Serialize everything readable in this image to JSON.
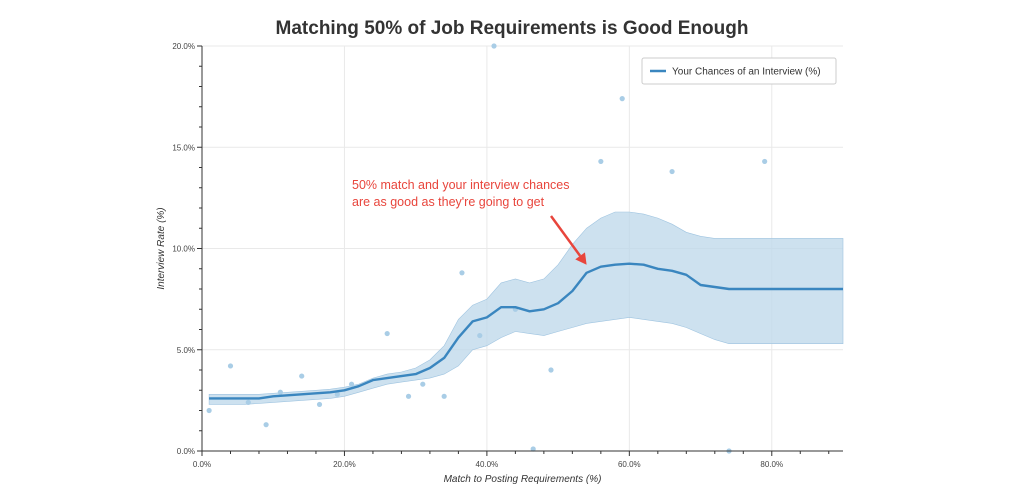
{
  "chart_data": {
    "type": "line",
    "title": "Matching 50% of Job Requirements is Good Enough",
    "xlabel": "Match to Posting Requirements (%)",
    "ylabel": "Interview Rate (%)",
    "xlim": [
      0,
      90
    ],
    "ylim": [
      0,
      20
    ],
    "x_ticks": [
      0,
      20,
      40,
      60,
      80
    ],
    "x_tick_labels": [
      "0.0%",
      "20.0%",
      "40.0%",
      "60.0%",
      "80.0%"
    ],
    "y_ticks": [
      0,
      5,
      10,
      15,
      20
    ],
    "y_tick_labels": [
      "0.0%",
      "5.0%",
      "10.0%",
      "15.0%",
      "20.0%"
    ],
    "grid": true,
    "legend_position": "top-right",
    "series": [
      {
        "name": "Your Chances of an Interview (%)",
        "color": "#3a86bf",
        "x": [
          1,
          4,
          6,
          8,
          10,
          12,
          14,
          16,
          18,
          20,
          22,
          24,
          26,
          28,
          30,
          32,
          34,
          36,
          38,
          40,
          42,
          44,
          46,
          48,
          50,
          52,
          54,
          56,
          58,
          60,
          62,
          64,
          66,
          68,
          70,
          72,
          74,
          76,
          78,
          80,
          82,
          84,
          86,
          88,
          90
        ],
        "y": [
          2.6,
          2.6,
          2.6,
          2.6,
          2.7,
          2.75,
          2.8,
          2.85,
          2.9,
          3.0,
          3.2,
          3.5,
          3.6,
          3.7,
          3.8,
          4.1,
          4.6,
          5.6,
          6.4,
          6.6,
          7.1,
          7.1,
          6.9,
          7.0,
          7.3,
          7.9,
          8.8,
          9.1,
          9.2,
          9.25,
          9.2,
          9.0,
          8.9,
          8.7,
          8.2,
          8.1,
          8.0,
          8.0,
          8.0,
          8.0,
          8.0,
          8.0,
          8.0,
          8.0,
          8.0
        ],
        "upper": [
          2.8,
          2.8,
          2.8,
          2.8,
          2.85,
          2.9,
          2.95,
          3.0,
          3.05,
          3.15,
          3.3,
          3.6,
          3.8,
          3.9,
          4.1,
          4.5,
          5.2,
          6.5,
          7.2,
          7.5,
          8.3,
          8.5,
          8.3,
          8.5,
          9.2,
          10.2,
          11.0,
          11.5,
          11.8,
          11.8,
          11.7,
          11.5,
          11.2,
          10.8,
          10.6,
          10.5,
          10.5,
          10.5,
          10.5,
          10.5,
          10.5,
          10.5,
          10.5,
          10.5,
          10.5
        ],
        "lower": [
          2.3,
          2.3,
          2.3,
          2.35,
          2.4,
          2.45,
          2.5,
          2.55,
          2.6,
          2.7,
          2.9,
          3.1,
          3.3,
          3.4,
          3.5,
          3.6,
          3.8,
          4.2,
          5.0,
          5.2,
          5.6,
          5.9,
          5.8,
          5.7,
          5.9,
          6.1,
          6.3,
          6.4,
          6.5,
          6.6,
          6.5,
          6.4,
          6.3,
          6.1,
          5.8,
          5.5,
          5.3,
          5.3,
          5.3,
          5.3,
          5.3,
          5.3,
          5.3,
          5.3,
          5.3
        ]
      }
    ],
    "scatter": [
      [
        1,
        2.0
      ],
      [
        4,
        4.2
      ],
      [
        6.5,
        2.4
      ],
      [
        9,
        1.3
      ],
      [
        11,
        2.9
      ],
      [
        14,
        3.7
      ],
      [
        16.5,
        2.3
      ],
      [
        19,
        2.8
      ],
      [
        21,
        3.3
      ],
      [
        26,
        5.8
      ],
      [
        29,
        2.7
      ],
      [
        31,
        3.3
      ],
      [
        34,
        2.7
      ],
      [
        36.5,
        8.8
      ],
      [
        39,
        5.7
      ],
      [
        41,
        20.0
      ],
      [
        44,
        7.0
      ],
      [
        46.5,
        0.1
      ],
      [
        49,
        4.0
      ],
      [
        56,
        14.3
      ],
      [
        59,
        17.4
      ],
      [
        66,
        13.8
      ],
      [
        74,
        0.0
      ],
      [
        79,
        14.3
      ]
    ],
    "annotation": {
      "lines": [
        "50% match and your interview chances",
        "are as good as they're going to get"
      ],
      "target": [
        54,
        9.0
      ]
    },
    "colors": {
      "line": "#3a86bf",
      "band": "#bcd7ea",
      "points": "#a9cde6",
      "annotation": "#e8453c",
      "grid": "#e9e9e9"
    }
  }
}
